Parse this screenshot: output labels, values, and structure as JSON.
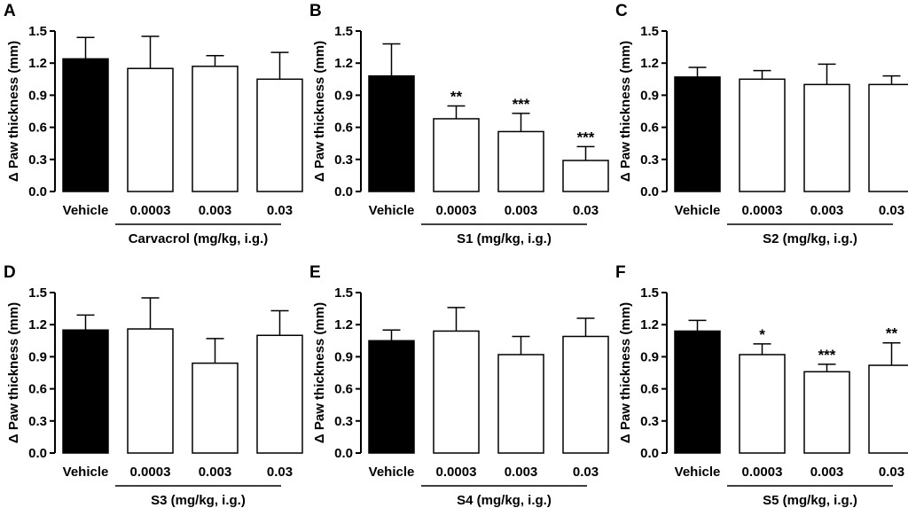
{
  "figure": {
    "fill_control": "#000000",
    "fill_treatment": "#ffffff",
    "stroke": "#000000"
  },
  "chart_data": [
    {
      "type": "bar",
      "panel_label": "A",
      "categories": [
        "Vehicle",
        "0.0003",
        "0.003",
        "0.03"
      ],
      "values": [
        1.24,
        1.15,
        1.17,
        1.05
      ],
      "errors": [
        0.2,
        0.3,
        0.1,
        0.25
      ],
      "significance": [
        "",
        "",
        "",
        ""
      ],
      "ylabel": "Δ Paw thickness (mm)",
      "yticks": [
        "0.0",
        "0.3",
        "0.6",
        "0.9",
        "1.2",
        "1.5"
      ],
      "ylim": [
        0,
        1.5
      ],
      "group_label": "Carvacrol (mg/kg, i.g.)"
    },
    {
      "type": "bar",
      "panel_label": "B",
      "categories": [
        "Vehicle",
        "0.0003",
        "0.003",
        "0.03"
      ],
      "values": [
        1.08,
        0.68,
        0.56,
        0.29
      ],
      "errors": [
        0.3,
        0.12,
        0.17,
        0.13
      ],
      "significance": [
        "",
        "**",
        "***",
        "***"
      ],
      "ylabel": "Δ Paw thickness (mm)",
      "yticks": [
        "0.0",
        "0.3",
        "0.6",
        "0.9",
        "1.2",
        "1.5"
      ],
      "ylim": [
        0,
        1.5
      ],
      "group_label": "S1 (mg/kg, i.g.)"
    },
    {
      "type": "bar",
      "panel_label": "C",
      "categories": [
        "Vehicle",
        "0.0003",
        "0.003",
        "0.03"
      ],
      "values": [
        1.07,
        1.05,
        1.0,
        1.0
      ],
      "errors": [
        0.09,
        0.08,
        0.19,
        0.08
      ],
      "significance": [
        "",
        "",
        "",
        ""
      ],
      "ylabel": "Δ Paw thickness (mm)",
      "yticks": [
        "0.0",
        "0.3",
        "0.6",
        "0.9",
        "1.2",
        "1.5"
      ],
      "ylim": [
        0,
        1.5
      ],
      "group_label": "S2 (mg/kg, i.g.)"
    },
    {
      "type": "bar",
      "panel_label": "D",
      "categories": [
        "Vehicle",
        "0.0003",
        "0.003",
        "0.03"
      ],
      "values": [
        1.15,
        1.16,
        0.84,
        1.1
      ],
      "errors": [
        0.14,
        0.29,
        0.23,
        0.23
      ],
      "significance": [
        "",
        "",
        "",
        ""
      ],
      "ylabel": "Δ Paw thickness (mm)",
      "yticks": [
        "0.0",
        "0.3",
        "0.6",
        "0.9",
        "1.2",
        "1.5"
      ],
      "ylim": [
        0,
        1.5
      ],
      "group_label": "S3 (mg/kg, i.g.)"
    },
    {
      "type": "bar",
      "panel_label": "E",
      "categories": [
        "Vehicle",
        "0.0003",
        "0.003",
        "0.03"
      ],
      "values": [
        1.05,
        1.14,
        0.92,
        1.09
      ],
      "errors": [
        0.1,
        0.22,
        0.17,
        0.17
      ],
      "significance": [
        "",
        "",
        "",
        ""
      ],
      "ylabel": "Δ Paw thickness (mm)",
      "yticks": [
        "0.0",
        "0.3",
        "0.6",
        "0.9",
        "1.2",
        "1.5"
      ],
      "ylim": [
        0,
        1.5
      ],
      "group_label": "S4 (mg/kg, i.g.)"
    },
    {
      "type": "bar",
      "panel_label": "F",
      "categories": [
        "Vehicle",
        "0.0003",
        "0.003",
        "0.03"
      ],
      "values": [
        1.14,
        0.92,
        0.76,
        0.82
      ],
      "errors": [
        0.1,
        0.1,
        0.07,
        0.21
      ],
      "significance": [
        "",
        "*",
        "***",
        "**"
      ],
      "ylabel": "Δ Paw thickness (mm)",
      "yticks": [
        "0.0",
        "0.3",
        "0.6",
        "0.9",
        "1.2",
        "1.5"
      ],
      "ylim": [
        0,
        1.5
      ],
      "group_label": "S5 (mg/kg, i.g.)"
    }
  ]
}
